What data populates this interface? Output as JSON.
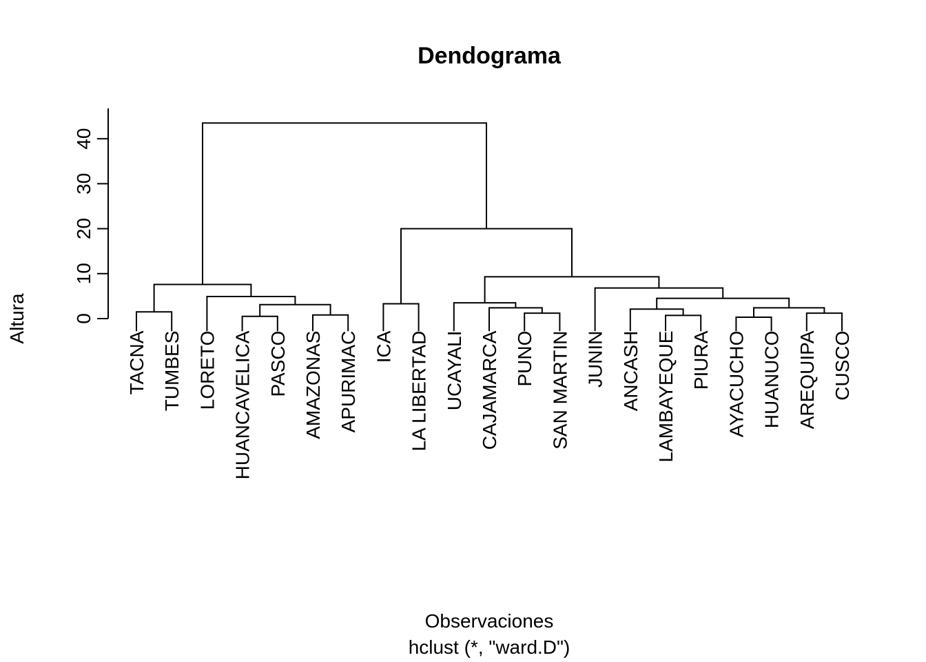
{
  "chart_data": {
    "type": "dendrogram",
    "title": "Dendograma",
    "xlabel": "Observaciones",
    "sublabel": "hclust (*, \"ward.D\")",
    "ylabel": "Altura",
    "yticks": [
      0,
      10,
      20,
      30,
      40
    ],
    "ylim": [
      0,
      46
    ],
    "leaves": [
      "TACNA",
      "TUMBES",
      "LORETO",
      "HUANCAVELICA",
      "PASCO",
      "AMAZONAS",
      "APURIMAC",
      "ICA",
      "LA LIBERTAD",
      "UCAYALI",
      "CAJAMARCA",
      "PUNO",
      "SAN MARTIN",
      "JUNIN",
      "ANCASH",
      "LAMBAYEQUE",
      "PIURA",
      "AYACUCHO",
      "HUANUCO",
      "AREQUIPA",
      "CUSCO"
    ],
    "leaf_drop_height": 2.8,
    "merges": [
      {
        "id": "m1",
        "left": "TACNA",
        "right": "TUMBES",
        "height": 1.5
      },
      {
        "id": "m2",
        "left": "HUANCAVELICA",
        "right": "PASCO",
        "height": 0.5
      },
      {
        "id": "m3",
        "left": "AMAZONAS",
        "right": "APURIMAC",
        "height": 0.8
      },
      {
        "id": "m4",
        "left": "m2",
        "right": "m3",
        "height": 3.1
      },
      {
        "id": "m5",
        "left": "LORETO",
        "right": "m4",
        "height": 4.9
      },
      {
        "id": "m6",
        "left": "m1",
        "right": "m5",
        "height": 7.6
      },
      {
        "id": "m7",
        "left": "ICA",
        "right": "LA LIBERTAD",
        "height": 3.3
      },
      {
        "id": "m8",
        "left": "PUNO",
        "right": "SAN MARTIN",
        "height": 1.2
      },
      {
        "id": "m9",
        "left": "CAJAMARCA",
        "right": "m8",
        "height": 2.4
      },
      {
        "id": "m10",
        "left": "UCAYALI",
        "right": "m9",
        "height": 3.5
      },
      {
        "id": "m11",
        "left": "LAMBAYEQUE",
        "right": "PIURA",
        "height": 0.7
      },
      {
        "id": "m12",
        "left": "ANCASH",
        "right": "m11",
        "height": 2.1
      },
      {
        "id": "m13",
        "left": "AYACUCHO",
        "right": "HUANUCO",
        "height": 0.3
      },
      {
        "id": "m14",
        "left": "AREQUIPA",
        "right": "CUSCO",
        "height": 1.2
      },
      {
        "id": "m15",
        "left": "m13",
        "right": "m14",
        "height": 2.4
      },
      {
        "id": "m16",
        "left": "m12",
        "right": "m15",
        "height": 4.5
      },
      {
        "id": "m17",
        "left": "JUNIN",
        "right": "m16",
        "height": 6.8
      },
      {
        "id": "m18",
        "left": "m10",
        "right": "m17",
        "height": 9.3
      },
      {
        "id": "m19",
        "left": "m7",
        "right": "m18",
        "height": 20.0
      },
      {
        "id": "m20",
        "left": "m6",
        "right": "m19",
        "height": 43.5
      }
    ]
  }
}
